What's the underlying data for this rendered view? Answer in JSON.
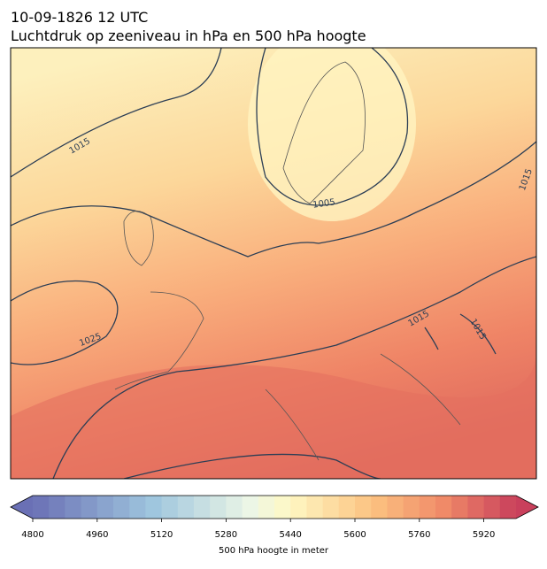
{
  "header": {
    "datetime": "10-09-1826 12 UTC",
    "title": "Luchtdruk op zeeniveau in hPa en 500 hPa hoogte"
  },
  "map": {
    "isobar_labels": [
      1015,
      1005,
      1015,
      1025,
      1015,
      1015
    ]
  },
  "colorbar": {
    "lim": [
      4800,
      6000
    ],
    "ticks": [
      4800,
      4960,
      5120,
      5280,
      5440,
      5600,
      5760,
      5920
    ],
    "label": "500 hPa hoogte in meter"
  }
}
